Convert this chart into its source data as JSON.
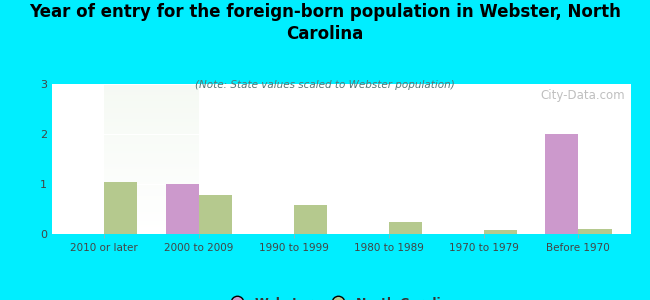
{
  "title": "Year of entry for the foreign-born population in Webster, North\nCarolina",
  "subtitle": "(Note: State values scaled to Webster population)",
  "categories": [
    "2010 or later",
    "2000 to 2009",
    "1990 to 1999",
    "1980 to 1989",
    "1970 to 1979",
    "Before 1970"
  ],
  "webster_values": [
    0,
    1.0,
    0,
    0,
    0,
    2.0
  ],
  "nc_values": [
    1.05,
    0.78,
    0.58,
    0.25,
    0.09,
    0.1
  ],
  "webster_color": "#cc99cc",
  "nc_color": "#b5c98e",
  "background_color": "#00eeff",
  "ylim": [
    0,
    3
  ],
  "yticks": [
    0,
    1,
    2,
    3
  ],
  "bar_width": 0.35,
  "legend_webster": "Webster",
  "legend_nc": "North Carolina",
  "watermark": "City-Data.com",
  "title_fontsize": 12,
  "subtitle_fontsize": 7.5,
  "tick_fontsize": 7.5,
  "ytick_fontsize": 8
}
